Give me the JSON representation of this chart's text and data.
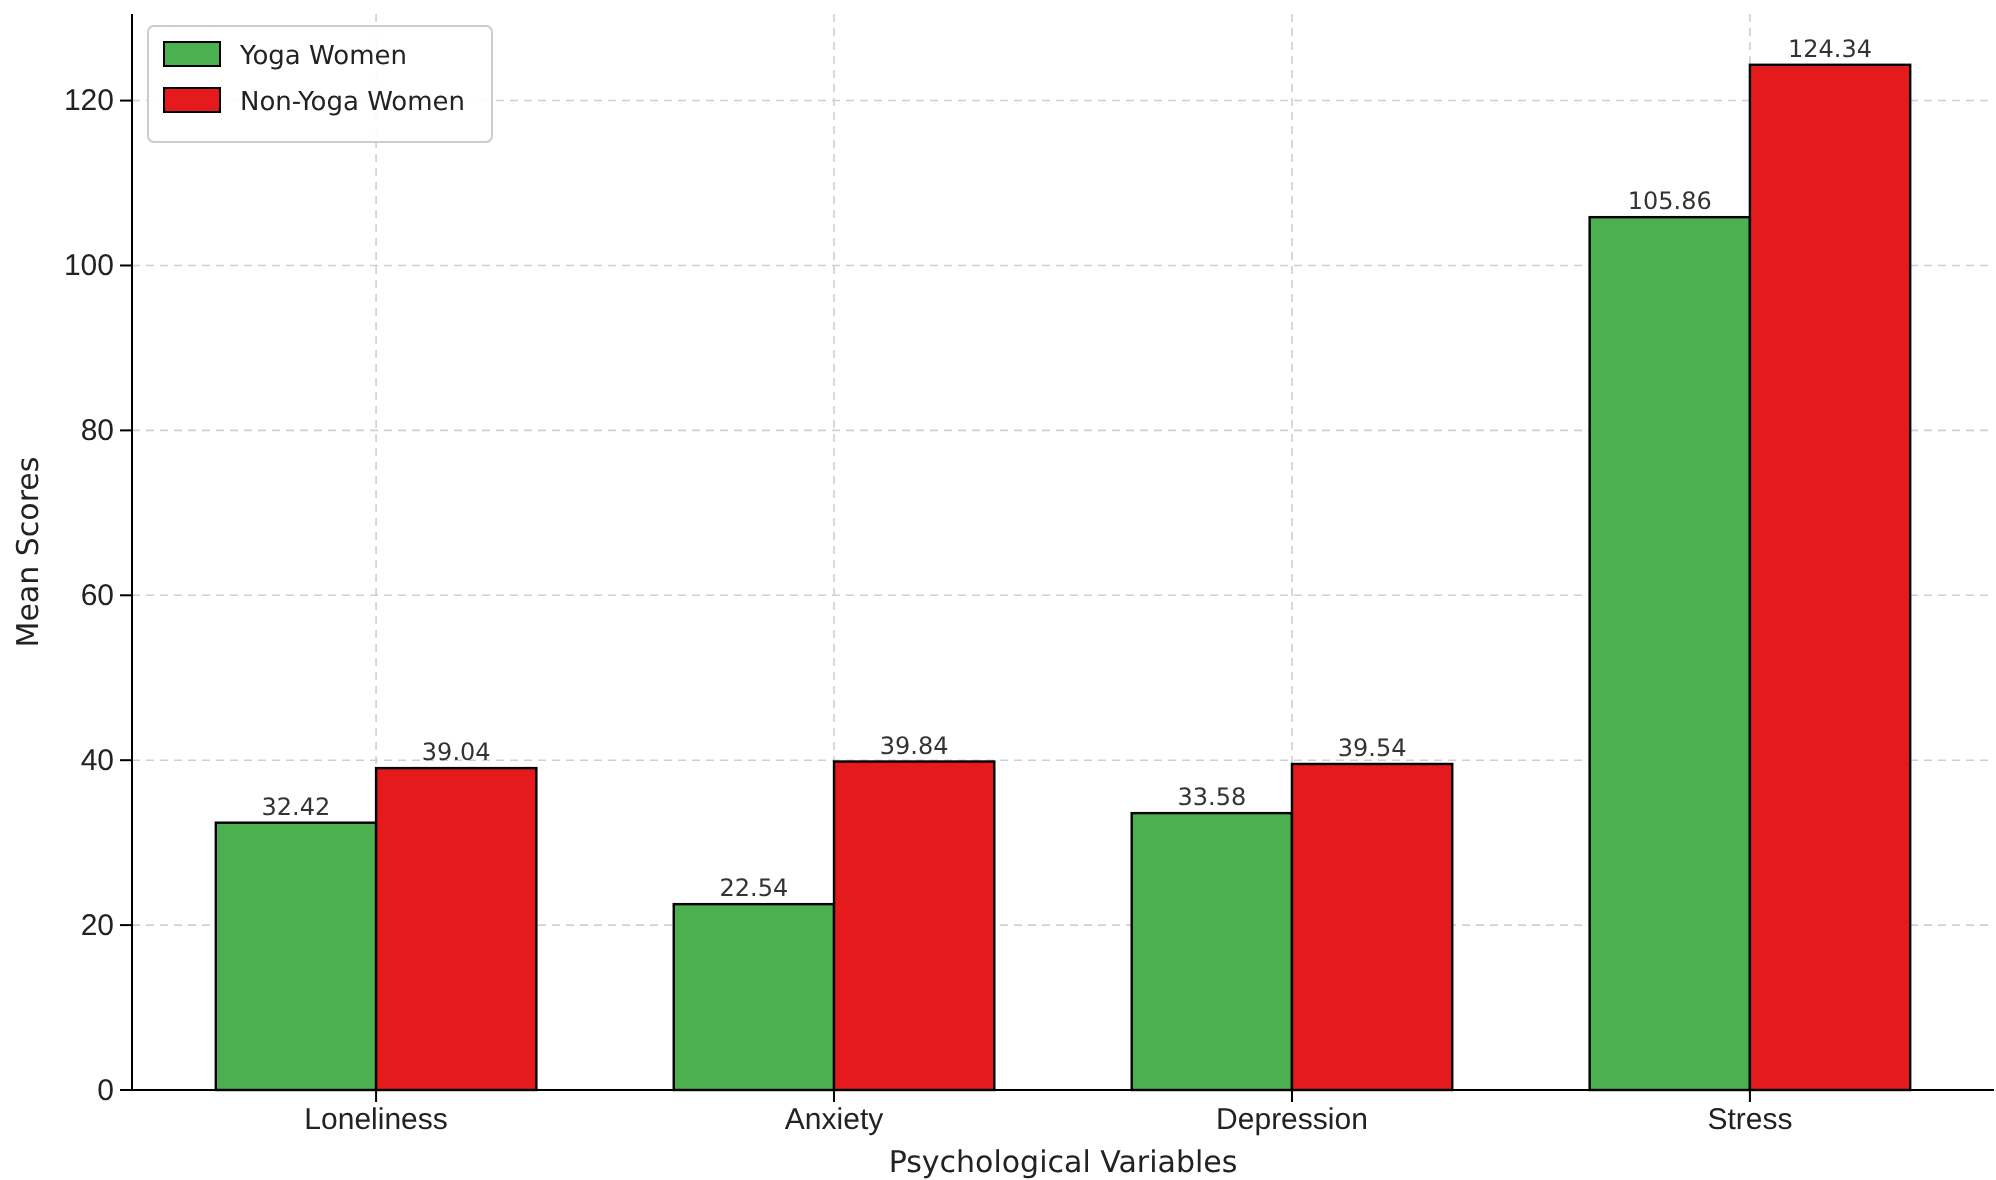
{
  "chart_data": {
    "type": "bar",
    "xlabel": "Psychological Variables",
    "ylabel": "Mean Scores",
    "categories": [
      "Loneliness",
      "Anxiety",
      "Depression",
      "Stress"
    ],
    "series": [
      {
        "name": "Yoga Women",
        "color": "#4caf50",
        "values": [
          32.42,
          22.54,
          33.58,
          105.86
        ]
      },
      {
        "name": "Non-Yoga Women",
        "color": "#e41a1c",
        "values": [
          39.04,
          39.84,
          39.54,
          124.34
        ]
      }
    ],
    "ylim": [
      0,
      130.5
    ],
    "yticks": [
      0,
      20,
      40,
      60,
      80,
      100,
      120
    ],
    "grid": true,
    "legend": "top left",
    "data_labels": true
  }
}
